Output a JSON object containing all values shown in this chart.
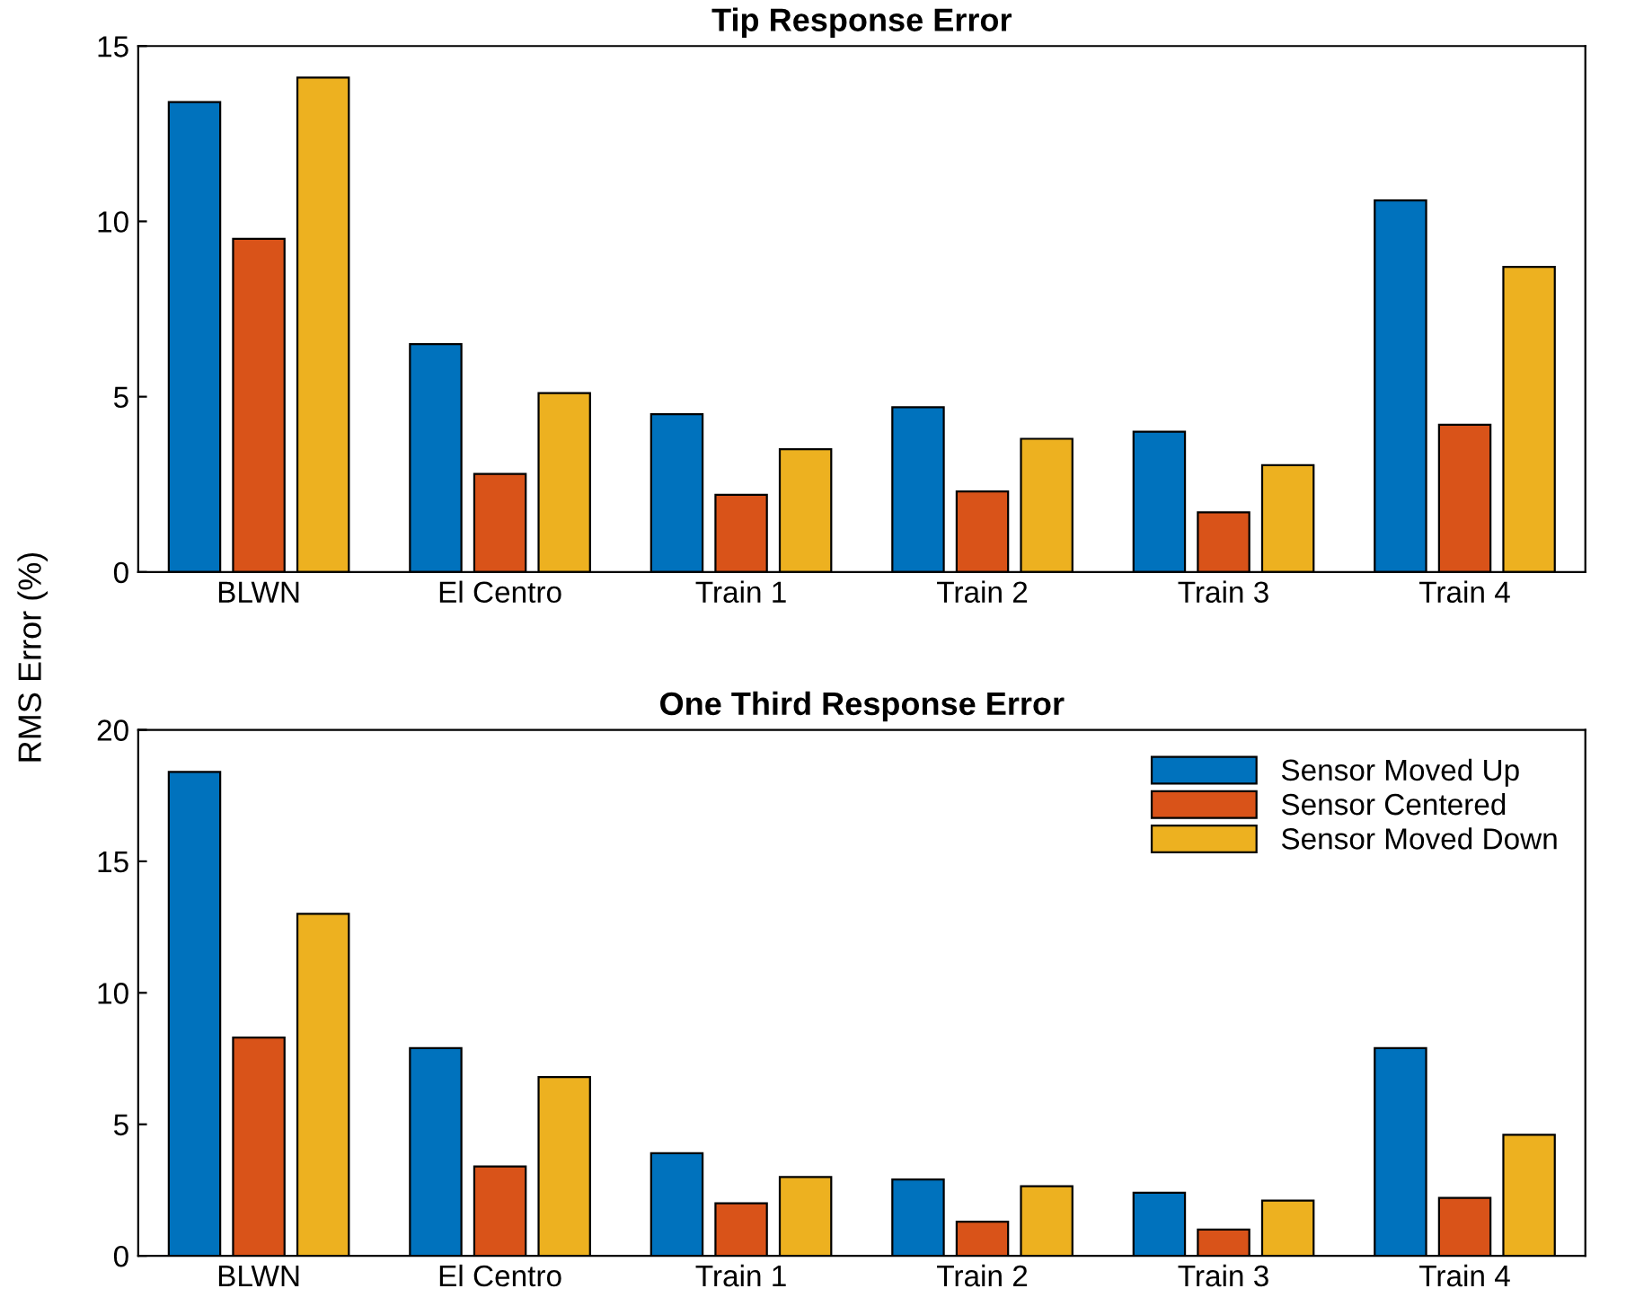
{
  "chart_data": [
    {
      "type": "bar",
      "title": "Tip Response Error",
      "ylabel": "RMS Error (%)",
      "categories": [
        "BLWN",
        "El Centro",
        "Train 1",
        "Train 2",
        "Train 3",
        "Train 4"
      ],
      "ylim": [
        0,
        15
      ],
      "yticks": [
        0,
        5,
        10,
        15
      ],
      "grid": false,
      "legend": false,
      "series": [
        {
          "color": "#0072bd",
          "values": [
            13.4,
            6.5,
            4.5,
            4.7,
            4.0,
            10.6
          ]
        },
        {
          "color": "#d95319",
          "values": [
            9.5,
            2.8,
            2.2,
            2.3,
            1.7,
            4.2
          ]
        },
        {
          "color": "#edb120",
          "values": [
            14.1,
            5.1,
            3.5,
            3.8,
            3.05,
            8.7
          ]
        }
      ]
    },
    {
      "type": "bar",
      "title": "One Third Response Error",
      "categories": [
        "BLWN",
        "El Centro",
        "Train 1",
        "Train 2",
        "Train 3",
        "Train 4"
      ],
      "ylim": [
        0,
        20
      ],
      "yticks": [
        0,
        5,
        10,
        15,
        20
      ],
      "grid": false,
      "legend": "top right",
      "series": [
        {
          "name": "Sensor Moved Up",
          "color": "#0072bd",
          "values": [
            18.4,
            7.9,
            3.9,
            2.9,
            2.4,
            7.9
          ]
        },
        {
          "name": "Sensor Centered",
          "color": "#d95319",
          "values": [
            8.3,
            3.4,
            2.0,
            1.3,
            1.0,
            2.2
          ]
        },
        {
          "name": "Sensor Moved Down",
          "color": "#edb120",
          "values": [
            13.0,
            6.8,
            3.0,
            2.65,
            2.1,
            4.6
          ]
        }
      ]
    }
  ]
}
